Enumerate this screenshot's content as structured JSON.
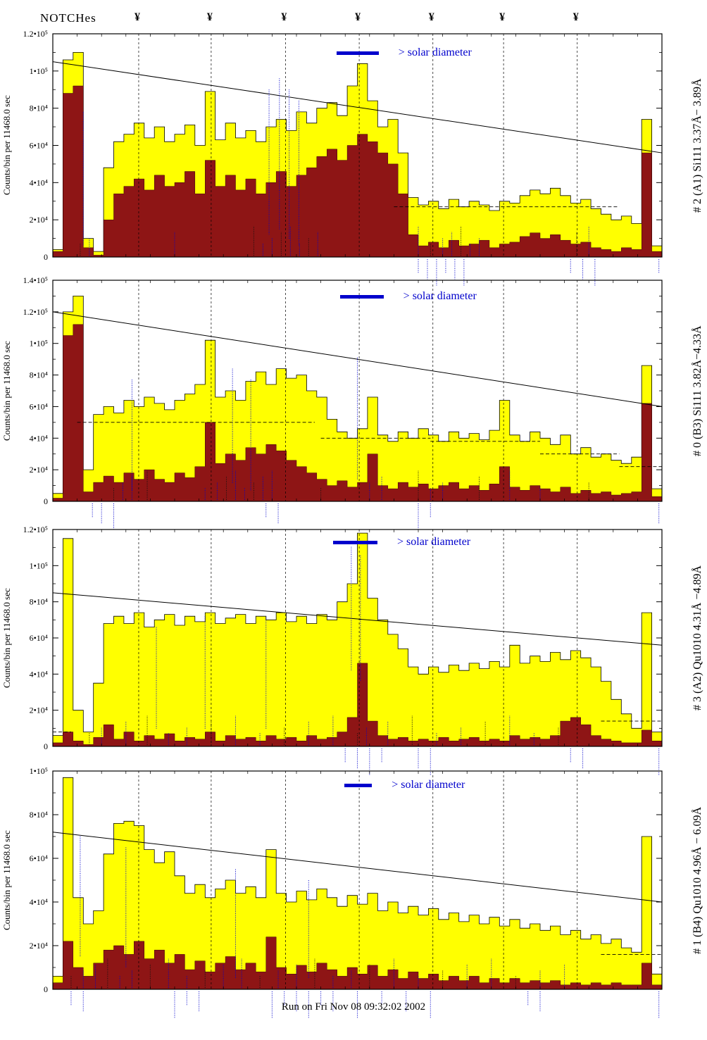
{
  "header": {
    "notches_label": "NOTCHes",
    "notch_symbol": "¥"
  },
  "footer": {
    "run_label": "Run on Fri Nov 08 09:32:02 2002"
  },
  "solar_label": "> solar diameter",
  "colors": {
    "yellow": "#ffff00",
    "maroon": "#8e1515",
    "blue": "#0000cc",
    "axis": "#000000"
  },
  "notch_fractions": [
    0.141,
    0.26,
    0.382,
    0.503,
    0.624,
    0.74,
    0.861
  ],
  "chart_data": [
    {
      "type": "histogram-step",
      "title_right": "# 2 (A1) Si111  3.37Å− 3.89Å",
      "ylabel": "Counts/bin per  11468.0 sec",
      "xlabel": "",
      "ylim": [
        0,
        120000
      ],
      "ytick_step": 20000,
      "ytick_labels": [
        "0",
        "2•10⁴",
        "4•10⁴",
        "6•10⁴",
        "8•10⁴",
        "1•10⁵",
        "1.2•10⁵"
      ],
      "series": [
        {
          "name": "total counts (yellow)",
          "values": [
            4000,
            106000,
            110000,
            10000,
            3000,
            48000,
            62000,
            66000,
            72000,
            64000,
            70000,
            62000,
            66000,
            71000,
            60000,
            89000,
            63000,
            72000,
            64000,
            68000,
            62000,
            70000,
            74000,
            68000,
            78000,
            72000,
            80000,
            83000,
            76000,
            92000,
            104000,
            84000,
            70000,
            74000,
            56000,
            32000,
            28000,
            30000,
            26000,
            31000,
            27000,
            30000,
            28000,
            25000,
            30000,
            29000,
            33000,
            36000,
            34000,
            37000,
            33000,
            29000,
            31000,
            26000,
            23000,
            20000,
            22000,
            18000,
            74000,
            6000
          ]
        },
        {
          "name": "flagged counts (dark red)",
          "values": [
            3000,
            88000,
            92000,
            5000,
            1000,
            20000,
            34000,
            38000,
            42000,
            36000,
            44000,
            38000,
            40000,
            46000,
            34000,
            52000,
            38000,
            44000,
            36000,
            42000,
            34000,
            40000,
            46000,
            38000,
            44000,
            48000,
            54000,
            58000,
            52000,
            60000,
            66000,
            62000,
            56000,
            50000,
            34000,
            12000,
            6000,
            8000,
            5000,
            9000,
            6000,
            7000,
            9000,
            5000,
            7000,
            8000,
            11000,
            13000,
            10000,
            12000,
            9000,
            7000,
            8000,
            5000,
            4000,
            3000,
            5000,
            4000,
            56000,
            3000
          ]
        }
      ],
      "trend_line": {
        "y_start": 105000,
        "y_end": 56000
      },
      "dashed_segments": [
        {
          "x1": 0.56,
          "x2": 0.93,
          "y": 27000
        }
      ],
      "solar_bar": {
        "x1": 0.466,
        "x2": 0.535,
        "bar_top": 18
      },
      "ann_inner": [
        0.045,
        0.06,
        0.2,
        0.33,
        0.345,
        0.36,
        0.375,
        0.39,
        0.405,
        0.42,
        0.435,
        0.6,
        0.62,
        0.64,
        0.655,
        0.67,
        0.685,
        0.7,
        0.86,
        0.88
      ],
      "ann_below": [
        0.6,
        0.615,
        0.63,
        0.645,
        0.66,
        0.675,
        0.85,
        0.87,
        0.89,
        0.995
      ],
      "ann_tall": [
        {
          "x": 0.355,
          "y1": 0.25,
          "y2": 0.9
        },
        {
          "x": 0.372,
          "y1": 0.2,
          "y2": 0.88
        },
        {
          "x": 0.388,
          "y1": 0.25,
          "y2": 0.92
        },
        {
          "x": 0.404,
          "y1": 0.3,
          "y2": 0.95
        },
        {
          "x": 0.05,
          "y1": 0.35,
          "y2": 0.95
        }
      ]
    },
    {
      "type": "histogram-step",
      "title_right": "# 0 (B3) Si111  3.82Å−4.33Å",
      "ylabel": "Counts/bin per  11468.0 sec",
      "xlabel": "",
      "ylim": [
        0,
        140000
      ],
      "ytick_step": 20000,
      "ytick_labels": [
        "0",
        "2•10⁴",
        "4•10⁴",
        "6•10⁴",
        "8•10⁴",
        "1•10⁵",
        "1.2•10⁵",
        "1.4•10⁵"
      ],
      "series": [
        {
          "name": "total counts (yellow)",
          "values": [
            5000,
            120000,
            130000,
            20000,
            55000,
            60000,
            56000,
            64000,
            60000,
            66000,
            62000,
            58000,
            64000,
            68000,
            74000,
            102000,
            66000,
            70000,
            64000,
            76000,
            82000,
            74000,
            84000,
            78000,
            80000,
            70000,
            66000,
            52000,
            44000,
            40000,
            46000,
            66000,
            42000,
            38000,
            44000,
            40000,
            46000,
            42000,
            38000,
            44000,
            40000,
            43000,
            39000,
            45000,
            64000,
            42000,
            38000,
            44000,
            40000,
            36000,
            42000,
            30000,
            34000,
            28000,
            30000,
            26000,
            24000,
            28000,
            86000,
            8000
          ]
        },
        {
          "name": "flagged counts (dark red)",
          "values": [
            2000,
            105000,
            112000,
            6000,
            12000,
            16000,
            12000,
            18000,
            14000,
            20000,
            14000,
            12000,
            18000,
            15000,
            22000,
            50000,
            24000,
            30000,
            26000,
            34000,
            30000,
            36000,
            32000,
            26000,
            22000,
            18000,
            14000,
            10000,
            13000,
            9000,
            12000,
            30000,
            10000,
            8000,
            12000,
            9000,
            11000,
            8000,
            10000,
            12000,
            8000,
            10000,
            7000,
            11000,
            22000,
            9000,
            7000,
            10000,
            8000,
            6000,
            9000,
            5000,
            7000,
            5000,
            6000,
            4000,
            5000,
            6000,
            62000,
            3000
          ]
        }
      ],
      "trend_line": {
        "y_start": 120000,
        "y_end": 60000
      },
      "dashed_segments": [
        {
          "x1": 0.04,
          "x2": 0.43,
          "y": 50000
        },
        {
          "x1": 0.44,
          "x2": 0.62,
          "y": 40000
        },
        {
          "x1": 0.62,
          "x2": 0.8,
          "y": 38000
        },
        {
          "x1": 0.8,
          "x2": 0.93,
          "y": 30000
        },
        {
          "x1": 0.93,
          "x2": 1.0,
          "y": 22000
        }
      ],
      "solar_bar": {
        "x1": 0.472,
        "x2": 0.543,
        "bar_top": 14
      },
      "ann_inner": [
        0.1,
        0.115,
        0.13,
        0.155,
        0.25,
        0.27,
        0.285,
        0.3,
        0.315,
        0.33,
        0.345,
        0.36,
        0.44,
        0.52,
        0.54,
        0.6,
        0.62,
        0.64,
        0.7,
        0.75,
        0.8,
        0.88
      ],
      "ann_below": [
        0.065,
        0.08,
        0.1,
        0.35,
        0.37,
        0.6,
        0.62,
        0.995
      ],
      "ann_tall": [
        {
          "x": 0.13,
          "y1": 0.45,
          "y2": 0.95
        },
        {
          "x": 0.295,
          "y1": 0.4,
          "y2": 0.92
        },
        {
          "x": 0.325,
          "y1": 0.45,
          "y2": 0.95
        },
        {
          "x": 0.5,
          "y1": 0.35,
          "y2": 0.9
        }
      ]
    },
    {
      "type": "histogram-step",
      "title_right": "# 3 (A2) Qu1010  4.31Å −4.89Å",
      "ylabel": "Counts/bin per  11468.0 sec",
      "xlabel": "",
      "ylim": [
        0,
        120000
      ],
      "ytick_step": 20000,
      "ytick_labels": [
        "0",
        "2•10⁴",
        "4•10⁴",
        "6•10⁴",
        "8•10⁴",
        "1•10⁵",
        "1.2•10⁵"
      ],
      "series": [
        {
          "name": "total counts (yellow)",
          "values": [
            6000,
            115000,
            20000,
            8000,
            35000,
            68000,
            72000,
            68000,
            74000,
            66000,
            70000,
            73000,
            67000,
            72000,
            69000,
            74000,
            68000,
            71000,
            73000,
            68000,
            72000,
            70000,
            74000,
            69000,
            72000,
            68000,
            73000,
            70000,
            80000,
            90000,
            118000,
            82000,
            70000,
            62000,
            54000,
            44000,
            40000,
            44000,
            41000,
            45000,
            42000,
            46000,
            43000,
            47000,
            44000,
            56000,
            46000,
            50000,
            47000,
            52000,
            48000,
            53000,
            49000,
            44000,
            36000,
            26000,
            18000,
            10000,
            74000,
            8000
          ]
        },
        {
          "name": "flagged counts (dark red)",
          "values": [
            2000,
            8000,
            3000,
            1000,
            5000,
            12000,
            4000,
            8000,
            3000,
            6000,
            4000,
            7000,
            3000,
            5000,
            4000,
            8000,
            3000,
            6000,
            4000,
            5000,
            3000,
            6000,
            4000,
            5000,
            3000,
            6000,
            4000,
            5000,
            8000,
            16000,
            46000,
            14000,
            6000,
            4000,
            5000,
            3000,
            4000,
            3000,
            5000,
            3000,
            4000,
            5000,
            3000,
            4000,
            3000,
            6000,
            4000,
            5000,
            4000,
            6000,
            14000,
            16000,
            12000,
            6000,
            4000,
            3000,
            2000,
            2000,
            9000,
            3000
          ]
        }
      ],
      "trend_line": {
        "y_start": 85000,
        "y_end": 56000
      },
      "dashed_segments": [
        {
          "x1": 0.0,
          "x2": 0.03,
          "y": 8000
        },
        {
          "x1": 0.9,
          "x2": 1.0,
          "y": 14000
        }
      ],
      "solar_bar": {
        "x1": 0.46,
        "x2": 0.533,
        "bar_top": 9
      },
      "ann_inner": [
        0.06,
        0.08,
        0.12,
        0.155,
        0.19,
        0.22,
        0.26,
        0.3,
        0.34,
        0.38,
        0.42,
        0.46,
        0.5,
        0.515,
        0.55,
        0.59,
        0.63,
        0.67,
        0.71,
        0.75,
        0.79,
        0.83
      ],
      "ann_below": [
        0.48,
        0.5,
        0.52,
        0.54,
        0.6,
        0.62,
        0.85,
        0.87,
        0.995
      ],
      "ann_tall": [
        {
          "x": 0.49,
          "y1": 0.08,
          "y2": 0.65
        },
        {
          "x": 0.505,
          "y1": 0.12,
          "y2": 0.7
        },
        {
          "x": 0.25,
          "y1": 0.4,
          "y2": 0.92
        },
        {
          "x": 0.35,
          "y1": 0.4,
          "y2": 0.92
        },
        {
          "x": 0.17,
          "y1": 0.45,
          "y2": 0.92
        }
      ]
    },
    {
      "type": "histogram-step",
      "title_right": "# 1 (B4) Qu1010 4.96Å − 6.09Å",
      "ylabel": "Counts/bin per  11468.0 sec",
      "xlabel": "",
      "ylim": [
        0,
        100000
      ],
      "ytick_step": 20000,
      "ytick_labels": [
        "0",
        "2•10⁴",
        "4•10⁴",
        "6•10⁴",
        "8•10⁴",
        "1•10⁵"
      ],
      "series": [
        {
          "name": "total counts (yellow)",
          "values": [
            6000,
            97000,
            42000,
            30000,
            36000,
            62000,
            76000,
            77000,
            75000,
            64000,
            58000,
            63000,
            52000,
            44000,
            48000,
            42000,
            46000,
            50000,
            44000,
            47000,
            42000,
            64000,
            44000,
            40000,
            45000,
            41000,
            46000,
            42000,
            38000,
            43000,
            39000,
            44000,
            36000,
            40000,
            35000,
            38000,
            34000,
            37000,
            32000,
            35000,
            31000,
            34000,
            30000,
            33000,
            29000,
            32000,
            28000,
            30000,
            27000,
            29000,
            25000,
            27000,
            23000,
            25000,
            21000,
            23000,
            19000,
            17000,
            70000,
            7000
          ]
        },
        {
          "name": "flagged counts (dark red)",
          "values": [
            3000,
            22000,
            10000,
            6000,
            12000,
            18000,
            20000,
            16000,
            22000,
            14000,
            18000,
            12000,
            16000,
            9000,
            13000,
            8000,
            12000,
            15000,
            9000,
            12000,
            8000,
            24000,
            10000,
            7000,
            11000,
            8000,
            12000,
            9000,
            6000,
            10000,
            7000,
            11000,
            6000,
            9000,
            5000,
            8000,
            5000,
            7000,
            4000,
            6000,
            4000,
            6000,
            3000,
            5000,
            3000,
            5000,
            3000,
            4000,
            3000,
            4000,
            2000,
            3000,
            2000,
            3000,
            2000,
            3000,
            2000,
            2000,
            12000,
            2000
          ]
        }
      ],
      "trend_line": {
        "y_start": 72000,
        "y_end": 40000
      },
      "dashed_segments": [
        {
          "x1": 0.9,
          "x2": 1.0,
          "y": 16000
        }
      ],
      "solar_bar": {
        "x1": 0.479,
        "x2": 0.524,
        "bar_top": 11
      },
      "ann_inner": [
        0.03,
        0.05,
        0.07,
        0.09,
        0.11,
        0.13,
        0.16,
        0.19,
        0.22,
        0.25,
        0.28,
        0.31,
        0.34,
        0.37,
        0.4,
        0.43,
        0.46,
        0.49,
        0.52,
        0.56,
        0.6,
        0.64,
        0.68,
        0.72,
        0.76,
        0.8,
        0.84
      ],
      "ann_below": [
        0.03,
        0.05,
        0.2,
        0.22,
        0.24,
        0.36,
        0.38,
        0.4,
        0.42,
        0.44,
        0.46,
        0.5,
        0.54,
        0.58,
        0.62,
        0.78,
        0.8,
        0.995
      ],
      "ann_tall": [
        {
          "x": 0.045,
          "y1": 0.3,
          "y2": 0.85
        },
        {
          "x": 0.12,
          "y1": 0.35,
          "y2": 0.9
        },
        {
          "x": 0.3,
          "y1": 0.45,
          "y2": 0.95
        },
        {
          "x": 0.42,
          "y1": 0.5,
          "y2": 0.95
        }
      ]
    }
  ]
}
